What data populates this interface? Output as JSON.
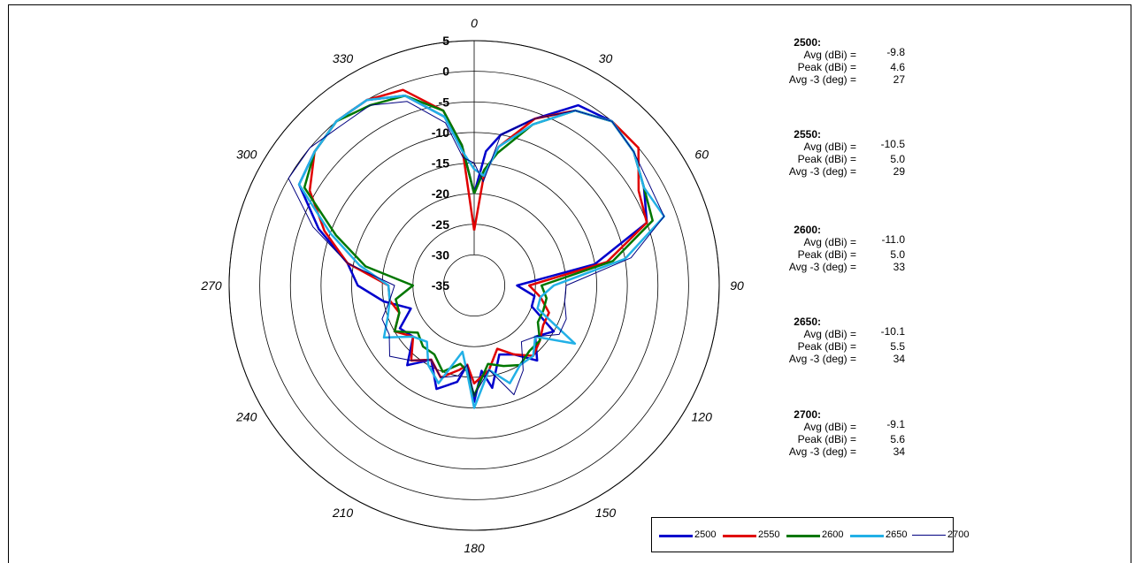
{
  "chart_data": {
    "type": "polar-line",
    "angle_labels": [
      "0",
      "30",
      "60",
      "90",
      "120",
      "150",
      "180",
      "210",
      "240",
      "270",
      "300",
      "330"
    ],
    "radial_ticks": [
      "5",
      "0",
      "-5",
      "-10",
      "-15",
      "-20",
      "-25",
      "-30",
      "-35"
    ],
    "rlim": [
      -35,
      5
    ],
    "series": [
      {
        "name": "2500",
        "color": "#0000CC",
        "width": 2.5,
        "stats": {
          "avg": "-9.8",
          "peak": "4.6",
          "avg3": "27"
        },
        "points": [
          [
            0,
            -20
          ],
          [
            5,
            -13
          ],
          [
            10,
            -10
          ],
          [
            20,
            -6
          ],
          [
            30,
            -1
          ],
          [
            40,
            0
          ],
          [
            50,
            -1
          ],
          [
            60,
            -3
          ],
          [
            70,
            -5
          ],
          [
            80,
            -15
          ],
          [
            90,
            -28
          ],
          [
            100,
            -25
          ],
          [
            110,
            -25
          ],
          [
            120,
            -20
          ],
          [
            130,
            -22
          ],
          [
            140,
            -19
          ],
          [
            150,
            -22
          ],
          [
            160,
            -23
          ],
          [
            170,
            -18
          ],
          [
            175,
            -21
          ],
          [
            180,
            -16
          ],
          [
            185,
            -22
          ],
          [
            190,
            -19
          ],
          [
            200,
            -17
          ],
          [
            210,
            -21
          ],
          [
            220,
            -18
          ],
          [
            230,
            -22
          ],
          [
            240,
            -21
          ],
          [
            250,
            -24
          ],
          [
            260,
            -20
          ],
          [
            270,
            -16
          ],
          [
            280,
            -14
          ],
          [
            290,
            -8
          ],
          [
            300,
            -2
          ],
          [
            310,
            -1
          ],
          [
            320,
            0
          ],
          [
            330,
            0
          ],
          [
            340,
            -2
          ],
          [
            350,
            -7
          ],
          [
            355,
            -12
          ],
          [
            360,
            -20
          ]
        ]
      },
      {
        "name": "2550",
        "color": "#E00000",
        "width": 2.5,
        "stats": {
          "avg": "-10.5",
          "peak": "5.0",
          "avg3": "29"
        },
        "points": [
          [
            0,
            -26
          ],
          [
            5,
            -17
          ],
          [
            10,
            -12
          ],
          [
            20,
            -6
          ],
          [
            30,
            -2
          ],
          [
            40,
            0
          ],
          [
            50,
            0
          ],
          [
            60,
            -4
          ],
          [
            70,
            -5
          ],
          [
            80,
            -13
          ],
          [
            90,
            -26
          ],
          [
            100,
            -24
          ],
          [
            110,
            -22
          ],
          [
            120,
            -22
          ],
          [
            130,
            -21
          ],
          [
            140,
            -20
          ],
          [
            150,
            -22
          ],
          [
            160,
            -24
          ],
          [
            170,
            -21
          ],
          [
            180,
            -19
          ],
          [
            185,
            -22
          ],
          [
            190,
            -21
          ],
          [
            200,
            -19
          ],
          [
            210,
            -21
          ],
          [
            220,
            -19
          ],
          [
            230,
            -22
          ],
          [
            240,
            -20
          ],
          [
            250,
            -22
          ],
          [
            260,
            -21
          ],
          [
            270,
            -21
          ],
          [
            280,
            -14
          ],
          [
            290,
            -9
          ],
          [
            300,
            -4
          ],
          [
            310,
            -1
          ],
          [
            320,
            0
          ],
          [
            330,
            0
          ],
          [
            340,
            -1
          ],
          [
            350,
            -6
          ],
          [
            355,
            -12
          ],
          [
            360,
            -26
          ]
        ]
      },
      {
        "name": "2600",
        "color": "#007700",
        "width": 2.5,
        "stats": {
          "avg": "-11.0",
          "peak": "5.0",
          "avg3": "33"
        },
        "points": [
          [
            0,
            -20
          ],
          [
            5,
            -16
          ],
          [
            10,
            -13
          ],
          [
            20,
            -7
          ],
          [
            30,
            -2
          ],
          [
            40,
            0
          ],
          [
            50,
            -1
          ],
          [
            60,
            -3
          ],
          [
            70,
            -4
          ],
          [
            80,
            -12
          ],
          [
            90,
            -24
          ],
          [
            100,
            -23
          ],
          [
            110,
            -23
          ],
          [
            120,
            -23
          ],
          [
            130,
            -21
          ],
          [
            140,
            -21
          ],
          [
            150,
            -20
          ],
          [
            160,
            -21
          ],
          [
            170,
            -22
          ],
          [
            180,
            -17
          ],
          [
            185,
            -21
          ],
          [
            190,
            -22
          ],
          [
            200,
            -20
          ],
          [
            210,
            -22
          ],
          [
            220,
            -22
          ],
          [
            230,
            -23
          ],
          [
            240,
            -20
          ],
          [
            250,
            -22
          ],
          [
            260,
            -22
          ],
          [
            270,
            -25
          ],
          [
            280,
            -17
          ],
          [
            290,
            -11
          ],
          [
            300,
            -3
          ],
          [
            310,
            -1
          ],
          [
            320,
            0
          ],
          [
            330,
            -1
          ],
          [
            340,
            -2
          ],
          [
            350,
            -6
          ],
          [
            355,
            -12
          ],
          [
            360,
            -20
          ]
        ]
      },
      {
        "name": "2650",
        "color": "#22B0E6",
        "width": 2.5,
        "stats": {
          "avg": "-10.1",
          "peak": "5.5",
          "avg3": "34"
        },
        "points": [
          [
            0,
            -16
          ],
          [
            5,
            -17
          ],
          [
            10,
            -12
          ],
          [
            20,
            -7
          ],
          [
            30,
            -2
          ],
          [
            40,
            0
          ],
          [
            50,
            -1
          ],
          [
            60,
            -3
          ],
          [
            70,
            -2
          ],
          [
            80,
            -10
          ],
          [
            90,
            -22
          ],
          [
            100,
            -24
          ],
          [
            110,
            -24
          ],
          [
            120,
            -16
          ],
          [
            130,
            -22
          ],
          [
            140,
            -20
          ],
          [
            150,
            -20
          ],
          [
            160,
            -18
          ],
          [
            170,
            -21
          ],
          [
            180,
            -15
          ],
          [
            185,
            -21
          ],
          [
            190,
            -24
          ],
          [
            200,
            -18
          ],
          [
            210,
            -20
          ],
          [
            220,
            -23
          ],
          [
            230,
            -22
          ],
          [
            240,
            -18
          ],
          [
            250,
            -20
          ],
          [
            260,
            -21
          ],
          [
            270,
            -21
          ],
          [
            280,
            -16
          ],
          [
            290,
            -10
          ],
          [
            300,
            -2
          ],
          [
            310,
            -1
          ],
          [
            320,
            0
          ],
          [
            330,
            0
          ],
          [
            340,
            -2
          ],
          [
            350,
            -7
          ],
          [
            355,
            -13
          ],
          [
            360,
            -16
          ]
        ]
      },
      {
        "name": "2700",
        "color": "#000080",
        "width": 1,
        "stats": {
          "avg": "-9.1",
          "peak": "5.6",
          "avg3": "34"
        },
        "points": [
          [
            0,
            -15
          ],
          [
            5,
            -18
          ],
          [
            10,
            -10
          ],
          [
            20,
            -6
          ],
          [
            30,
            -2
          ],
          [
            40,
            0
          ],
          [
            50,
            -1
          ],
          [
            60,
            -2
          ],
          [
            70,
            -2
          ],
          [
            80,
            -9
          ],
          [
            90,
            -20
          ],
          [
            100,
            -20
          ],
          [
            110,
            -19
          ],
          [
            120,
            -19
          ],
          [
            130,
            -22
          ],
          [
            140,
            -23
          ],
          [
            150,
            -19
          ],
          [
            160,
            -16
          ],
          [
            170,
            -21
          ],
          [
            180,
            -17
          ],
          [
            185,
            -22
          ],
          [
            190,
            -20
          ],
          [
            200,
            -19
          ],
          [
            210,
            -21
          ],
          [
            220,
            -19
          ],
          [
            230,
            -17
          ],
          [
            240,
            -19
          ],
          [
            250,
            -19
          ],
          [
            260,
            -21
          ],
          [
            270,
            -22
          ],
          [
            280,
            -14
          ],
          [
            290,
            -7
          ],
          [
            300,
            0
          ],
          [
            310,
            0
          ],
          [
            320,
            -1
          ],
          [
            330,
            -1
          ],
          [
            340,
            -3
          ],
          [
            350,
            -8
          ],
          [
            355,
            -14
          ],
          [
            360,
            -15
          ]
        ]
      }
    ],
    "stat_labels": {
      "avg": "Avg (dBi) =",
      "peak": "Peak (dBi) =",
      "avg3": "Avg -3 (deg) ="
    },
    "legend_placement": "bottom-right"
  }
}
